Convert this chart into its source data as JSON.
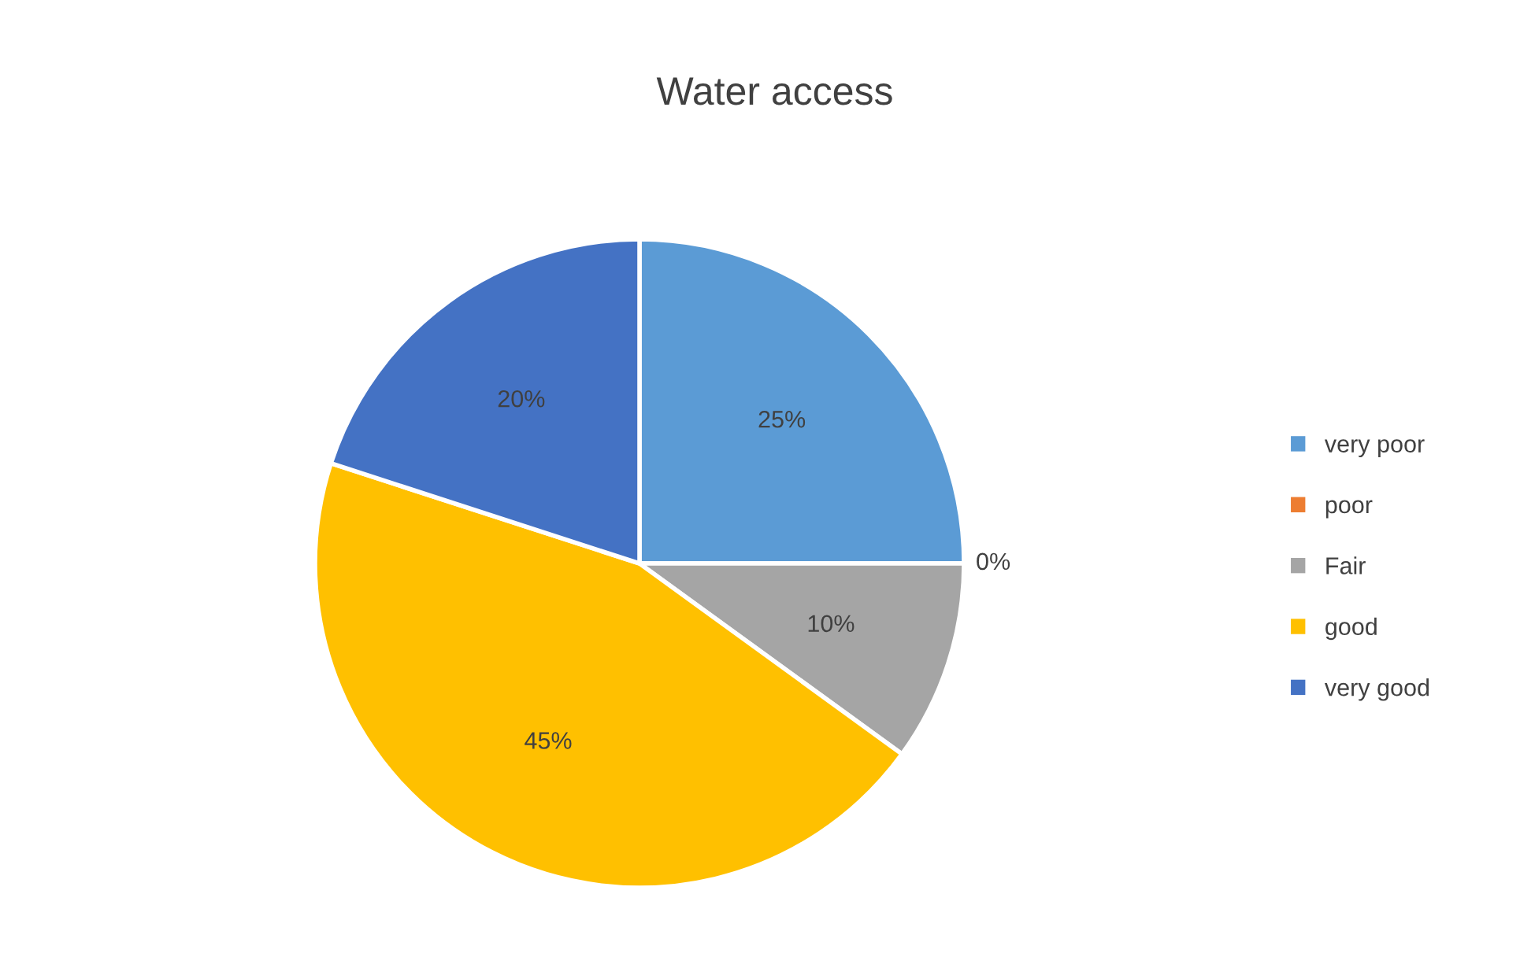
{
  "chart_data": {
    "type": "pie",
    "title": "Water access",
    "categories": [
      "very poor",
      "poor",
      "Fair",
      "good",
      "very good"
    ],
    "values": [
      25,
      0,
      10,
      45,
      20
    ],
    "colors": [
      "#5b9bd5",
      "#ed7d31",
      "#a5a5a5",
      "#ffc000",
      "#4472c4"
    ],
    "value_labels": [
      "25%",
      "0%",
      "10%",
      "45%",
      "20%"
    ],
    "legend": "right"
  }
}
